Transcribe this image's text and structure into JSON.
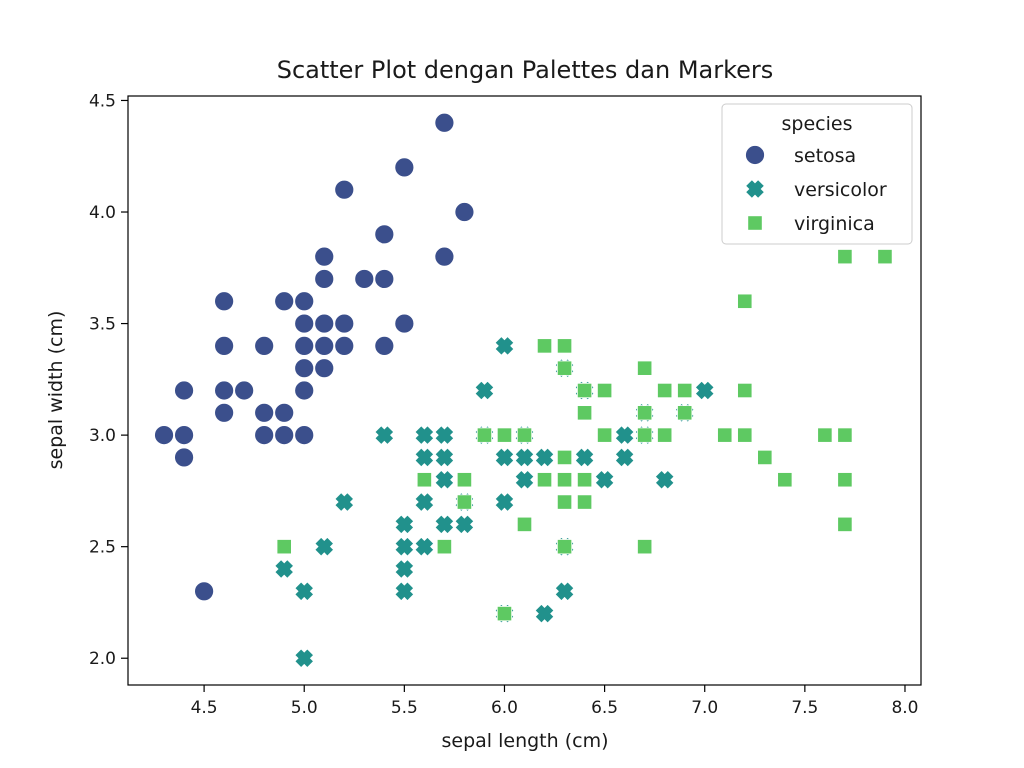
{
  "chart_data": {
    "type": "scatter",
    "title": "Scatter Plot dengan Palettes dan Markers",
    "xlabel": "sepal length (cm)",
    "ylabel": "sepal width (cm)",
    "xlim": [
      4.12,
      8.08
    ],
    "ylim": [
      1.88,
      4.52
    ],
    "xticks": [
      "4.5",
      "5.0",
      "5.5",
      "6.0",
      "6.5",
      "7.0",
      "7.5",
      "8.0"
    ],
    "yticks": [
      "2.0",
      "2.5",
      "3.0",
      "3.5",
      "4.0",
      "4.5"
    ],
    "grid": false,
    "legend": {
      "title": "species",
      "placement": "top-right"
    },
    "series": [
      {
        "name": "setosa",
        "marker": "circle",
        "color": "#3b4f8c",
        "points": [
          [
            4.3,
            3.0
          ],
          [
            4.4,
            2.9
          ],
          [
            4.4,
            3.0
          ],
          [
            4.4,
            3.2
          ],
          [
            4.5,
            2.3
          ],
          [
            4.6,
            3.1
          ],
          [
            4.6,
            3.2
          ],
          [
            4.6,
            3.4
          ],
          [
            4.6,
            3.6
          ],
          [
            4.7,
            3.2
          ],
          [
            4.8,
            3.0
          ],
          [
            4.8,
            3.1
          ],
          [
            4.8,
            3.4
          ],
          [
            4.9,
            3.0
          ],
          [
            4.9,
            3.1
          ],
          [
            4.9,
            3.6
          ],
          [
            5.0,
            3.0
          ],
          [
            5.0,
            3.2
          ],
          [
            5.0,
            3.3
          ],
          [
            5.0,
            3.4
          ],
          [
            5.0,
            3.5
          ],
          [
            5.0,
            3.6
          ],
          [
            5.1,
            3.3
          ],
          [
            5.1,
            3.4
          ],
          [
            5.1,
            3.5
          ],
          [
            5.1,
            3.7
          ],
          [
            5.1,
            3.8
          ],
          [
            5.2,
            3.4
          ],
          [
            5.2,
            3.5
          ],
          [
            5.2,
            4.1
          ],
          [
            5.3,
            3.7
          ],
          [
            5.4,
            3.4
          ],
          [
            5.4,
            3.7
          ],
          [
            5.4,
            3.9
          ],
          [
            5.5,
            3.5
          ],
          [
            5.5,
            4.2
          ],
          [
            5.7,
            3.8
          ],
          [
            5.7,
            4.4
          ],
          [
            5.8,
            4.0
          ]
        ]
      },
      {
        "name": "versicolor",
        "marker": "x",
        "color": "#21918c",
        "points": [
          [
            4.9,
            2.4
          ],
          [
            5.0,
            2.0
          ],
          [
            5.0,
            2.3
          ],
          [
            5.1,
            2.5
          ],
          [
            5.2,
            2.7
          ],
          [
            5.4,
            3.0
          ],
          [
            5.5,
            2.3
          ],
          [
            5.5,
            2.4
          ],
          [
            5.5,
            2.5
          ],
          [
            5.5,
            2.6
          ],
          [
            5.6,
            2.5
          ],
          [
            5.6,
            2.7
          ],
          [
            5.6,
            2.9
          ],
          [
            5.6,
            3.0
          ],
          [
            5.7,
            2.6
          ],
          [
            5.7,
            2.8
          ],
          [
            5.7,
            2.9
          ],
          [
            5.7,
            3.0
          ],
          [
            5.8,
            2.6
          ],
          [
            5.8,
            2.7
          ],
          [
            5.9,
            3.0
          ],
          [
            5.9,
            3.2
          ],
          [
            6.0,
            2.2
          ],
          [
            6.0,
            2.7
          ],
          [
            6.0,
            2.9
          ],
          [
            6.0,
            3.4
          ],
          [
            6.1,
            2.8
          ],
          [
            6.1,
            2.9
          ],
          [
            6.1,
            3.0
          ],
          [
            6.2,
            2.2
          ],
          [
            6.2,
            2.9
          ],
          [
            6.3,
            2.3
          ],
          [
            6.3,
            2.5
          ],
          [
            6.3,
            3.3
          ],
          [
            6.4,
            2.9
          ],
          [
            6.4,
            3.2
          ],
          [
            6.5,
            2.8
          ],
          [
            6.6,
            2.9
          ],
          [
            6.6,
            3.0
          ],
          [
            6.7,
            3.0
          ],
          [
            6.7,
            3.1
          ],
          [
            6.8,
            2.8
          ],
          [
            6.9,
            3.1
          ],
          [
            7.0,
            3.2
          ]
        ]
      },
      {
        "name": "virginica",
        "marker": "square",
        "color": "#5ec962",
        "points": [
          [
            4.9,
            2.5
          ],
          [
            5.6,
            2.8
          ],
          [
            5.7,
            2.5
          ],
          [
            5.8,
            2.7
          ],
          [
            5.8,
            2.8
          ],
          [
            5.9,
            3.0
          ],
          [
            6.0,
            2.2
          ],
          [
            6.0,
            3.0
          ],
          [
            6.1,
            2.6
          ],
          [
            6.1,
            3.0
          ],
          [
            6.2,
            2.8
          ],
          [
            6.2,
            3.4
          ],
          [
            6.3,
            2.5
          ],
          [
            6.3,
            2.7
          ],
          [
            6.3,
            2.8
          ],
          [
            6.3,
            2.9
          ],
          [
            6.3,
            3.3
          ],
          [
            6.3,
            3.4
          ],
          [
            6.4,
            2.7
          ],
          [
            6.4,
            2.8
          ],
          [
            6.4,
            3.1
          ],
          [
            6.4,
            3.2
          ],
          [
            6.5,
            3.0
          ],
          [
            6.5,
            3.2
          ],
          [
            6.7,
            2.5
          ],
          [
            6.7,
            3.0
          ],
          [
            6.7,
            3.1
          ],
          [
            6.7,
            3.3
          ],
          [
            6.8,
            3.0
          ],
          [
            6.8,
            3.2
          ],
          [
            6.9,
            3.1
          ],
          [
            6.9,
            3.2
          ],
          [
            7.1,
            3.0
          ],
          [
            7.2,
            3.0
          ],
          [
            7.2,
            3.2
          ],
          [
            7.2,
            3.6
          ],
          [
            7.3,
            2.9
          ],
          [
            7.4,
            2.8
          ],
          [
            7.6,
            3.0
          ],
          [
            7.7,
            2.6
          ],
          [
            7.7,
            2.8
          ],
          [
            7.7,
            3.0
          ],
          [
            7.7,
            3.8
          ],
          [
            7.9,
            3.8
          ]
        ]
      }
    ]
  }
}
